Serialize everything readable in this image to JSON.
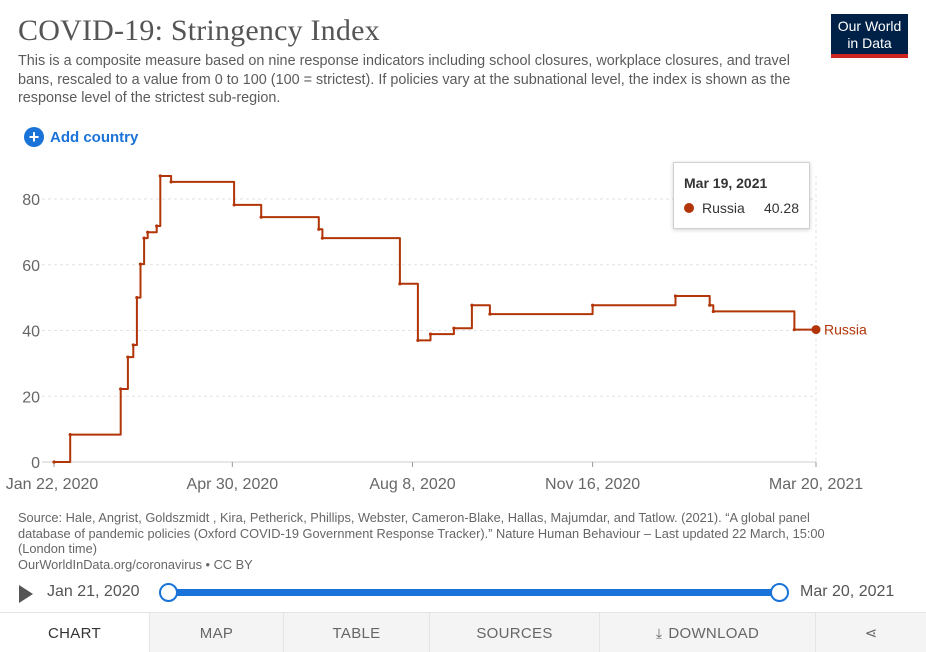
{
  "header": {
    "title": "COVID-19: Stringency Index",
    "subtitle": "This is a composite measure based on nine response indicators including school closures, workplace closures, and travel bans, rescaled to a value from 0 to 100 (100 = strictest). If policies vary at the subnational level, the index is shown as the response level of the strictest sub-region.",
    "logo_line1": "Our World",
    "logo_line2": "in Data"
  },
  "controls": {
    "add_country_label": "Add country"
  },
  "tooltip": {
    "date": "Mar 19, 2021",
    "country": "Russia",
    "value": "40.28"
  },
  "colors": {
    "series": "#b13507",
    "accent": "#1a73d9",
    "logo_bg": "#002147",
    "logo_bar": "#ce261e"
  },
  "chart_data": {
    "type": "line",
    "title": "COVID-19: Stringency Index",
    "xlabel": "",
    "ylabel": "",
    "ylim": [
      0,
      87
    ],
    "xlim": [
      "2020-01-22",
      "2021-03-20"
    ],
    "x_ticks": [
      "Jan 22, 2020",
      "Apr 30, 2020",
      "Aug 8, 2020",
      "Nov 16, 2020",
      "Mar 20, 2021"
    ],
    "y_ticks": [
      0,
      20,
      40,
      60,
      80
    ],
    "grid": true,
    "series": [
      {
        "name": "Russia",
        "color": "#b13507",
        "points": [
          [
            "2020-01-22",
            0
          ],
          [
            "2020-01-31",
            0
          ],
          [
            "2020-01-31",
            8.33
          ],
          [
            "2020-02-28",
            8.33
          ],
          [
            "2020-02-28",
            22.2
          ],
          [
            "2020-03-03",
            22.2
          ],
          [
            "2020-03-03",
            31.9
          ],
          [
            "2020-03-06",
            31.9
          ],
          [
            "2020-03-06",
            35.6
          ],
          [
            "2020-03-08",
            35.6
          ],
          [
            "2020-03-08",
            50.0
          ],
          [
            "2020-03-10",
            50.0
          ],
          [
            "2020-03-10",
            60.2
          ],
          [
            "2020-03-12",
            60.2
          ],
          [
            "2020-03-12",
            68.1
          ],
          [
            "2020-03-14",
            68.1
          ],
          [
            "2020-03-14",
            69.9
          ],
          [
            "2020-03-19",
            69.9
          ],
          [
            "2020-03-19",
            71.8
          ],
          [
            "2020-03-21",
            71.8
          ],
          [
            "2020-03-21",
            87.0
          ],
          [
            "2020-03-27",
            87.0
          ],
          [
            "2020-03-27",
            85.2
          ],
          [
            "2020-05-01",
            85.2
          ],
          [
            "2020-05-01",
            78.2
          ],
          [
            "2020-05-16",
            78.2
          ],
          [
            "2020-05-16",
            74.5
          ],
          [
            "2020-06-17",
            74.5
          ],
          [
            "2020-06-17",
            70.8
          ],
          [
            "2020-06-19",
            70.8
          ],
          [
            "2020-06-19",
            68.1
          ],
          [
            "2020-08-01",
            68.1
          ],
          [
            "2020-08-01",
            54.2
          ],
          [
            "2020-08-11",
            54.2
          ],
          [
            "2020-08-11",
            37.0
          ],
          [
            "2020-08-18",
            37.0
          ],
          [
            "2020-08-18",
            38.9
          ],
          [
            "2020-08-31",
            38.9
          ],
          [
            "2020-08-31",
            40.7
          ],
          [
            "2020-09-10",
            40.7
          ],
          [
            "2020-09-10",
            47.7
          ],
          [
            "2020-09-20",
            47.7
          ],
          [
            "2020-09-20",
            45.0
          ],
          [
            "2020-11-16",
            45.0
          ],
          [
            "2020-11-16",
            47.7
          ],
          [
            "2021-01-01",
            47.7
          ],
          [
            "2021-01-01",
            50.5
          ],
          [
            "2021-01-20",
            50.5
          ],
          [
            "2021-01-20",
            47.7
          ],
          [
            "2021-01-22",
            47.7
          ],
          [
            "2021-01-22",
            45.8
          ],
          [
            "2021-03-08",
            45.8
          ],
          [
            "2021-03-08",
            40.28
          ],
          [
            "2021-03-20",
            40.28
          ]
        ]
      }
    ]
  },
  "source": {
    "text": "Source: Hale, Angrist, Goldszmidt , Kira, Petherick, Phillips, Webster, Cameron-Blake, Hallas, Majumdar, and Tatlow. (2021). “A global panel database of pandemic policies (Oxford COVID-19 Government Response Tracker).” Nature Human Behaviour – Last updated 22 March, 15:00 (London time)",
    "link": "OurWorldInData.org/coronavirus • CC BY"
  },
  "timeline": {
    "start_label": "Jan 21, 2020",
    "end_label": "Mar 20, 2021"
  },
  "tabs": [
    {
      "label": "CHART"
    },
    {
      "label": "MAP"
    },
    {
      "label": "TABLE"
    },
    {
      "label": "SOURCES"
    },
    {
      "label": "DOWNLOAD"
    }
  ]
}
